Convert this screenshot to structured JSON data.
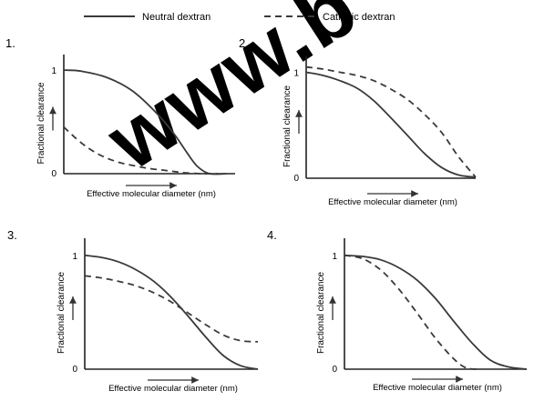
{
  "legend": [
    {
      "label": "Neutral dextran",
      "style": "solid"
    },
    {
      "label": "Cationic dextran",
      "style": "dashed"
    }
  ],
  "watermark": "www.b",
  "colors": {
    "line": "#3a3a3a",
    "axis": "#222222",
    "watermark": "#000000"
  },
  "chart_data": [
    {
      "type": "line",
      "panel_number": "1.",
      "xlabel": "Effective molecular diameter (nm)",
      "ylabel": "Fractional clearance",
      "y_ticks": [
        "1",
        "0"
      ],
      "ylim": [
        0,
        1.15
      ],
      "xlim": [
        0,
        1
      ],
      "series": [
        {
          "name": "Neutral dextran",
          "style": "solid",
          "x": [
            0,
            0.1,
            0.25,
            0.4,
            0.55,
            0.65,
            0.72,
            0.78,
            0.85,
            0.95
          ],
          "y": [
            1.0,
            0.99,
            0.93,
            0.8,
            0.57,
            0.37,
            0.2,
            0.07,
            0.0,
            0.0
          ]
        },
        {
          "name": "Cationic dextran",
          "style": "dashed",
          "x": [
            0,
            0.1,
            0.2,
            0.3,
            0.4,
            0.5,
            0.6,
            0.7,
            0.8,
            0.9
          ],
          "y": [
            0.45,
            0.3,
            0.19,
            0.12,
            0.08,
            0.05,
            0.03,
            0.01,
            0.0,
            0.0
          ]
        }
      ]
    },
    {
      "type": "line",
      "panel_number": "2.",
      "xlabel": "Effective molecular diameter (nm)",
      "ylabel": "Fractional clearance",
      "y_ticks": [
        "1",
        "0"
      ],
      "ylim": [
        0,
        1.15
      ],
      "xlim": [
        0,
        1
      ],
      "series": [
        {
          "name": "Neutral dextran",
          "style": "solid",
          "x": [
            0,
            0.1,
            0.2,
            0.3,
            0.4,
            0.5,
            0.6,
            0.7,
            0.8,
            0.9,
            1.0
          ],
          "y": [
            1.0,
            0.97,
            0.92,
            0.85,
            0.73,
            0.57,
            0.4,
            0.23,
            0.1,
            0.03,
            0.01
          ]
        },
        {
          "name": "Cationic dextran",
          "style": "dashed",
          "x": [
            0,
            0.1,
            0.2,
            0.3,
            0.4,
            0.5,
            0.6,
            0.7,
            0.8,
            0.9,
            1.0
          ],
          "y": [
            1.05,
            1.03,
            1.0,
            0.97,
            0.92,
            0.84,
            0.74,
            0.6,
            0.43,
            0.2,
            0.01
          ]
        }
      ]
    },
    {
      "type": "line",
      "panel_number": "3.",
      "xlabel": "Effective molecular diameter (nm)",
      "ylabel": "Fractional clearance",
      "y_ticks": [
        "1",
        "0"
      ],
      "ylim": [
        0,
        1.15
      ],
      "xlim": [
        0,
        1
      ],
      "series": [
        {
          "name": "Neutral dextran",
          "style": "solid",
          "x": [
            0,
            0.1,
            0.2,
            0.3,
            0.4,
            0.5,
            0.6,
            0.7,
            0.8,
            0.9,
            1.0
          ],
          "y": [
            1.0,
            0.98,
            0.94,
            0.87,
            0.77,
            0.63,
            0.46,
            0.28,
            0.12,
            0.03,
            0.0
          ]
        },
        {
          "name": "Cationic dextran",
          "style": "dashed",
          "x": [
            0,
            0.1,
            0.2,
            0.3,
            0.4,
            0.5,
            0.6,
            0.7,
            0.8,
            0.9,
            1.0
          ],
          "y": [
            0.82,
            0.8,
            0.77,
            0.73,
            0.67,
            0.59,
            0.49,
            0.39,
            0.3,
            0.25,
            0.24
          ]
        }
      ]
    },
    {
      "type": "line",
      "panel_number": "4.",
      "xlabel": "Effective molecular diameter (nm)",
      "ylabel": "Fractional clearance",
      "y_ticks": [
        "1",
        "0"
      ],
      "ylim": [
        0,
        1.15
      ],
      "xlim": [
        0,
        1
      ],
      "series": [
        {
          "name": "Neutral dextran",
          "style": "solid",
          "x": [
            0,
            0.1,
            0.2,
            0.3,
            0.4,
            0.5,
            0.6,
            0.7,
            0.8,
            0.9,
            1.0
          ],
          "y": [
            1.0,
            0.99,
            0.96,
            0.89,
            0.78,
            0.62,
            0.42,
            0.23,
            0.08,
            0.02,
            0.0
          ]
        },
        {
          "name": "Cationic dextran",
          "style": "dashed",
          "x": [
            0,
            0.1,
            0.2,
            0.3,
            0.4,
            0.5,
            0.6,
            0.67,
            0.75
          ],
          "y": [
            1.0,
            0.97,
            0.87,
            0.7,
            0.49,
            0.27,
            0.09,
            0.01,
            0.0
          ]
        }
      ]
    }
  ]
}
